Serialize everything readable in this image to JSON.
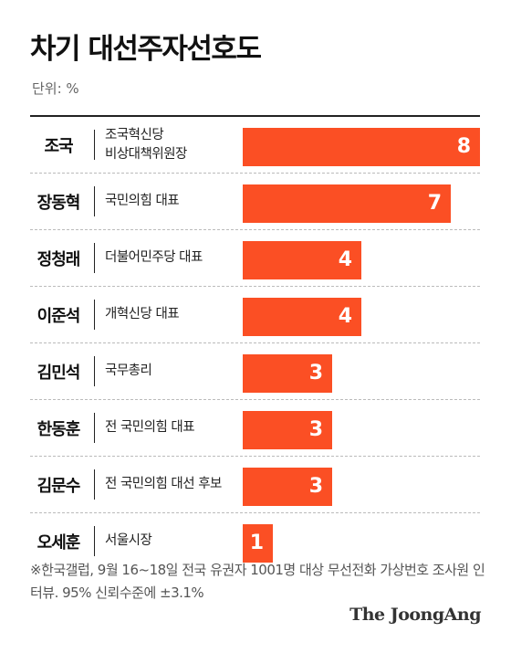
{
  "header": {
    "title": "차기 대선주자선호도",
    "unit": "단위: %"
  },
  "chart_data": {
    "type": "bar",
    "orientation": "horizontal",
    "xlim": [
      0,
      8
    ],
    "bar_color": "#fb4f24",
    "categories": [
      "조국",
      "장동혁",
      "정청래",
      "이준석",
      "김민석",
      "한동훈",
      "김문수",
      "오세훈"
    ],
    "titles": [
      "조국혁신당\n비상대책위원장",
      "국민의힘 대표",
      "더불어민주당 대표",
      "개혁신당 대표",
      "국무총리",
      "전 국민의힘 대표",
      "전 국민의힘 대선 후보",
      "서울시장"
    ],
    "values": [
      8,
      7,
      4,
      4,
      3,
      3,
      3,
      1
    ]
  },
  "footer": {
    "note": "※한국갤럽, 9월 16~18일 전국 유권자 1001명 대상 무선전화 가상번호 조사원 인터뷰. 95% 신뢰수준에 ±3.1%",
    "brand": "The JoongAng"
  }
}
